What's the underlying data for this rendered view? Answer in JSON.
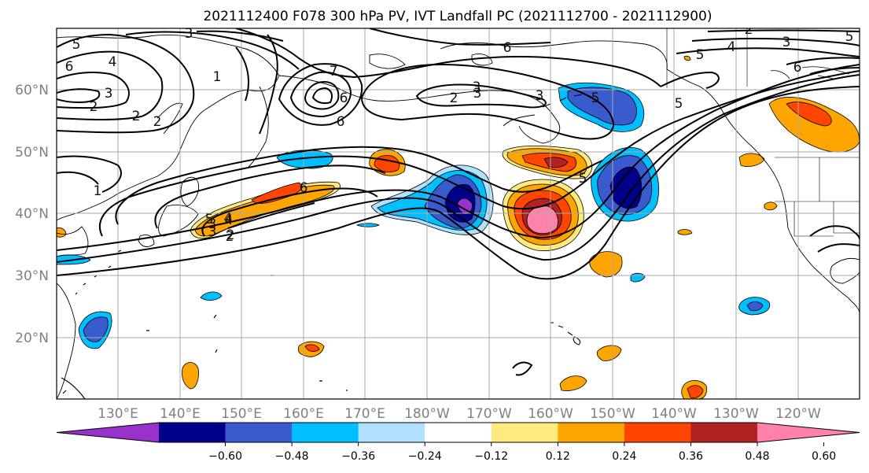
{
  "title": "2021112400 F078 300 hPa PV, IVT Landfall PC (2021112700 - 2021112900)",
  "lat_labels": [
    "60°N",
    "50°N",
    "40°N",
    "30°N",
    "20°N"
  ],
  "lon_labels": [
    "130°E",
    "140°E",
    "150°E",
    "160°E",
    "170°E",
    "180°W",
    "170°W",
    "160°W",
    "150°W",
    "140°W",
    "130°W",
    "120°W"
  ],
  "colorbar": {
    "tick_labels": [
      "−0.60",
      "−0.48",
      "−0.36",
      "−0.24",
      "−0.12",
      "0.12",
      "0.24",
      "0.36",
      "0.48",
      "0.60"
    ],
    "colors": [
      "#9932cc",
      "#00008b",
      "#3a5bcd",
      "#00bfff",
      "#b0e2ff",
      "#ffffff",
      "#ffea80",
      "#ffa500",
      "#ff4500",
      "#b22222",
      "#ff82ab"
    ]
  },
  "contour_labels": [
    "3",
    "5",
    "6",
    "4",
    "6",
    "2",
    "3",
    "1",
    "2",
    "3",
    "2",
    "1",
    "7",
    "6",
    "5",
    "2",
    "3",
    "2",
    "3",
    "4",
    "6",
    "5",
    "3",
    "6",
    "5",
    "5",
    "4",
    "3",
    "2",
    "6",
    "5",
    "4",
    "3",
    "2",
    "5"
  ]
}
